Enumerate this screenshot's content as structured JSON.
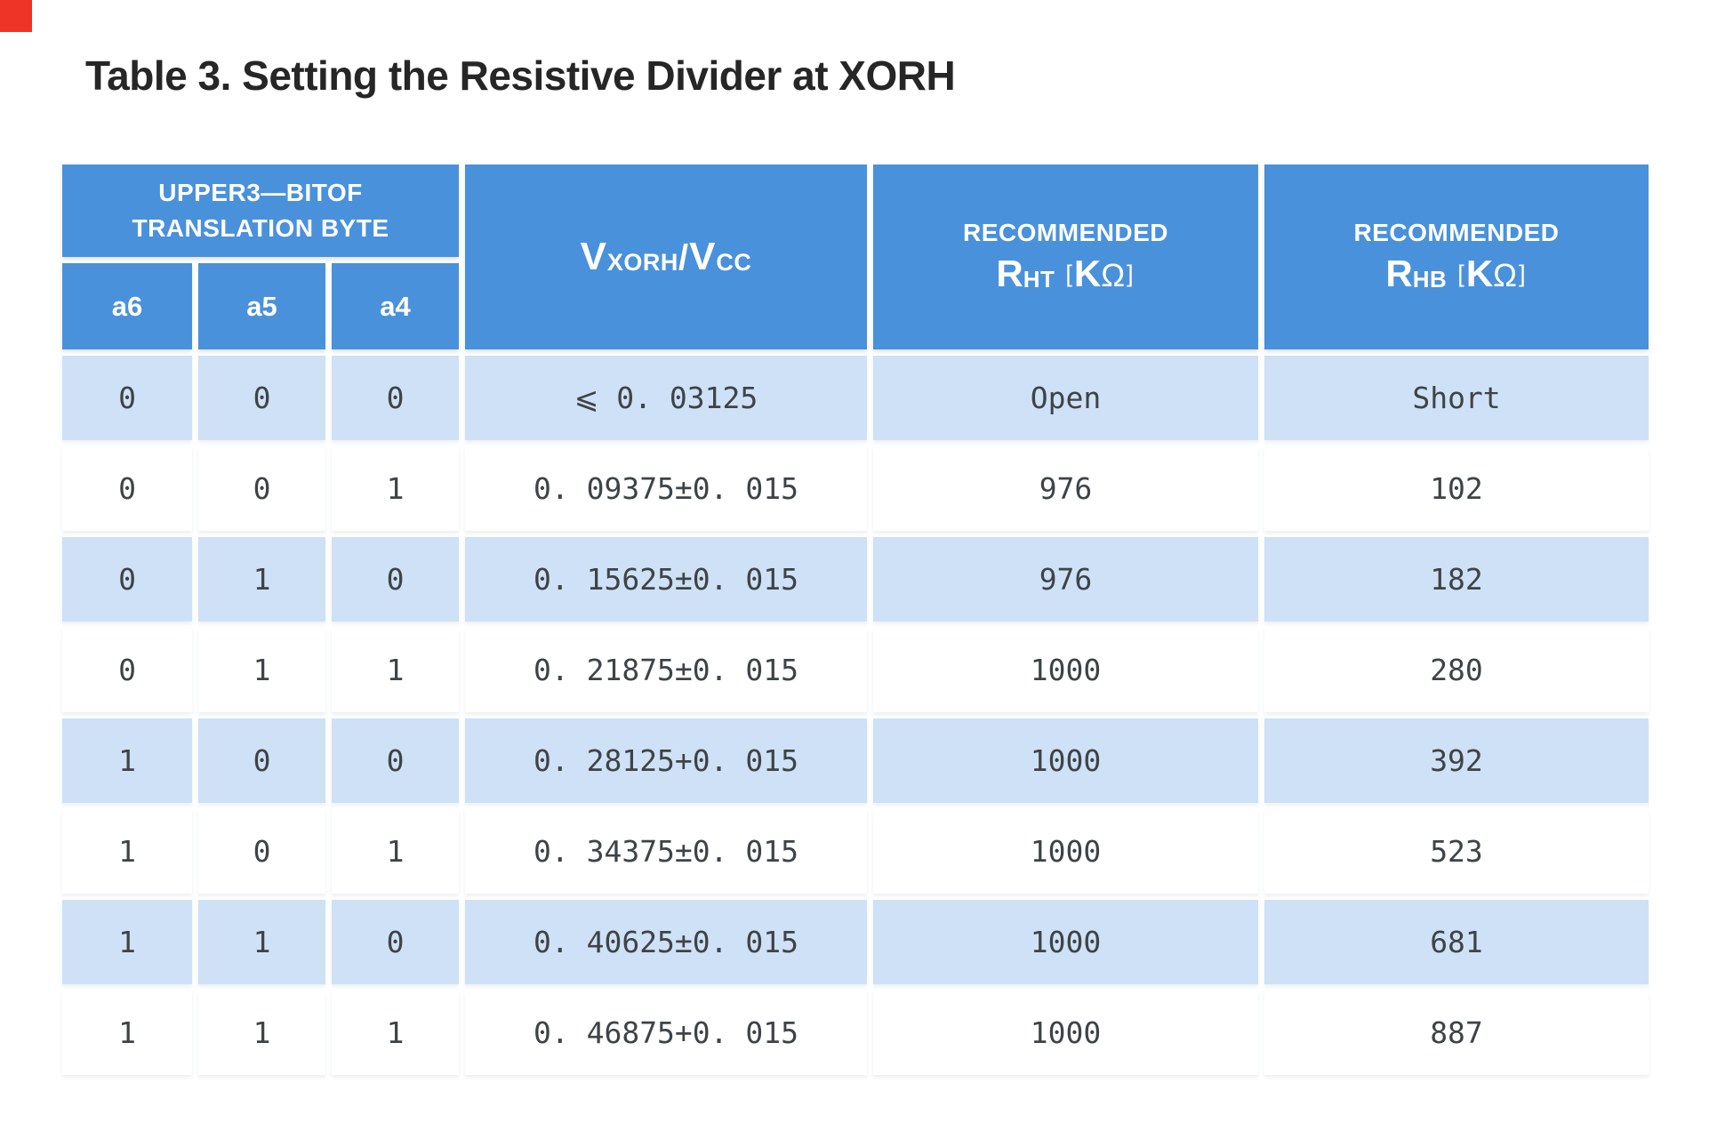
{
  "title": "Table 3. Setting the Resistive Divider at XORH",
  "colors": {
    "header_blue": "#4A91DB",
    "row_light_blue": "#CEE1F6",
    "row_white": "#FFFFFF",
    "data_text": "#3E4347",
    "title_text": "#262626",
    "corner_marker_red": "#EE3426"
  },
  "table": {
    "header": {
      "group_title": "UPPER3—BITOF TRANSLATION BYTE",
      "bits": {
        "b0": "a6",
        "b1": "a5",
        "b2": "a4"
      },
      "vxorh": {
        "v1": "V",
        "sub1": "XORH",
        "slash": "/",
        "v2": "V",
        "sub2": "CC"
      },
      "rht": {
        "title": "RECOMMENDED",
        "r": "R",
        "sub": "HT",
        "open": "[",
        "k": "K",
        "omega": "Ω",
        "close": "]"
      },
      "rhb": {
        "title": "RECOMMENDED",
        "r": "R",
        "sub": "HB",
        "open": "[",
        "k": "K",
        "omega": "Ω",
        "close": "]"
      }
    },
    "rows": [
      {
        "a6": "0",
        "a5": "0",
        "a4": "0",
        "vratio": "⩽ 0. 03125",
        "rht": "Open",
        "rhb": "Short"
      },
      {
        "a6": "0",
        "a5": "0",
        "a4": "1",
        "vratio": "0. 09375±0. 015",
        "rht": "976",
        "rhb": "102"
      },
      {
        "a6": "0",
        "a5": "1",
        "a4": "0",
        "vratio": "0. 15625±0. 015",
        "rht": "976",
        "rhb": "182"
      },
      {
        "a6": "0",
        "a5": "1",
        "a4": "1",
        "vratio": "0. 21875±0. 015",
        "rht": "1000",
        "rhb": "280"
      },
      {
        "a6": "1",
        "a5": "0",
        "a4": "0",
        "vratio": "0. 28125+0. 015",
        "rht": "1000",
        "rhb": "392"
      },
      {
        "a6": "1",
        "a5": "0",
        "a4": "1",
        "vratio": "0. 34375±0. 015",
        "rht": "1000",
        "rhb": "523"
      },
      {
        "a6": "1",
        "a5": "1",
        "a4": "0",
        "vratio": "0. 40625±0. 015",
        "rht": "1000",
        "rhb": "681"
      },
      {
        "a6": "1",
        "a5": "1",
        "a4": "1",
        "vratio": "0. 46875+0. 015",
        "rht": "1000",
        "rhb": "887"
      }
    ]
  }
}
